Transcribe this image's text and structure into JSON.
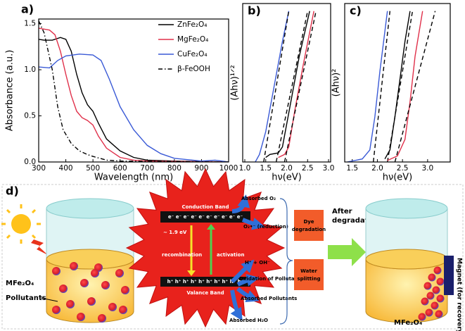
{
  "chart_data": [
    {
      "type": "line",
      "panel_label": "a)",
      "x_label": "Wavelength (nm)",
      "y_label": "Absorbance (a.u.)",
      "xlim": [
        300,
        1000
      ],
      "ylim": [
        0,
        1.55
      ],
      "xticks": [
        300,
        400,
        500,
        600,
        700,
        800,
        900,
        1000
      ],
      "yticks": [
        {
          "value": 0,
          "label": "0.0"
        },
        0.5,
        {
          "value": 1,
          "label": "1.0"
        },
        1.5
      ],
      "legend": "upper right",
      "series": [
        {
          "name": "ZnFe₂O₄",
          "color": "#000000",
          "dash": "solid",
          "x": [
            300,
            320,
            350,
            380,
            400,
            420,
            440,
            460,
            480,
            500,
            520,
            550,
            600,
            650,
            700,
            800,
            1000
          ],
          "values": [
            1.33,
            1.32,
            1.32,
            1.35,
            1.33,
            1.2,
            0.95,
            0.75,
            0.62,
            0.55,
            0.42,
            0.25,
            0.12,
            0.05,
            0.02,
            0.01,
            0
          ]
        },
        {
          "name": "MgFe₂O₄",
          "color": "#e0304a",
          "dash": "solid",
          "x": [
            300,
            340,
            360,
            380,
            400,
            420,
            440,
            460,
            480,
            500,
            520,
            550,
            600,
            650,
            700,
            1000
          ],
          "values": [
            1.45,
            1.43,
            1.38,
            1.2,
            0.95,
            0.72,
            0.55,
            0.48,
            0.45,
            0.4,
            0.28,
            0.15,
            0.05,
            0.02,
            0.01,
            0
          ]
        },
        {
          "name": "CuFe₂O₄",
          "color": "#3a5ad6",
          "dash": "solid",
          "x": [
            300,
            340,
            370,
            400,
            450,
            500,
            530,
            560,
            600,
            650,
            700,
            750,
            800,
            900,
            950,
            1000
          ],
          "values": [
            1.03,
            1.02,
            1.1,
            1.15,
            1.17,
            1.16,
            1.1,
            0.9,
            0.6,
            0.35,
            0.18,
            0.09,
            0.04,
            0.01,
            0.02,
            0
          ]
        },
        {
          "name": "β-FeOOH",
          "color": "#000000",
          "dash": "dashdot",
          "x": [
            300,
            320,
            350,
            370,
            390,
            420,
            450,
            480,
            500,
            550,
            600,
            1000
          ],
          "values": [
            1.53,
            1.4,
            1.0,
            0.6,
            0.35,
            0.2,
            0.12,
            0.08,
            0.06,
            0.02,
            0.01,
            0
          ]
        }
      ]
    },
    {
      "type": "line",
      "panel_label": "b)",
      "x_label": "hν(eV)",
      "y_label": "(Ahν)¹ᐟ²",
      "xlim": [
        0.95,
        3.05
      ],
      "ylim": [
        0,
        1.05
      ],
      "xticks": [
        {
          "value": 1,
          "label": "1.0"
        },
        1.5,
        {
          "value": 2,
          "label": "2.0"
        },
        2.5,
        {
          "value": 3,
          "label": "3.0"
        }
      ],
      "series": [
        {
          "color": "#3a5ad6",
          "dash": "solid",
          "x": [
            1.25,
            1.35,
            1.5,
            1.7,
            1.9,
            2.05
          ],
          "values": [
            0,
            0.05,
            0.2,
            0.5,
            0.8,
            1.0
          ]
        },
        {
          "color": "#000000",
          "dash": "dashed",
          "x": [
            1.45,
            2.05
          ],
          "values": [
            0,
            1.0
          ]
        },
        {
          "color": "#000000",
          "dash": "solid",
          "x": [
            1.5,
            1.6,
            1.8,
            1.9,
            2.1,
            2.3,
            2.55
          ],
          "values": [
            0.03,
            0.05,
            0.06,
            0.1,
            0.4,
            0.7,
            1.0
          ]
        },
        {
          "color": "#000000",
          "dash": "dashed",
          "x": [
            1.75,
            2.5
          ],
          "values": [
            0,
            1.0
          ]
        },
        {
          "color": "#e0304a",
          "dash": "solid",
          "x": [
            1.8,
            1.95,
            2.05,
            2.2,
            2.4,
            2.65
          ],
          "values": [
            0.03,
            0.05,
            0.1,
            0.35,
            0.65,
            1.0
          ]
        },
        {
          "color": "#000000",
          "dash": "dashed",
          "x": [
            1.95,
            2.7
          ],
          "values": [
            0,
            1.0
          ]
        }
      ]
    },
    {
      "type": "line",
      "panel_label": "c)",
      "x_label": "hν(eV)",
      "y_label": "(Ahν)²",
      "xlim": [
        1.35,
        3.45
      ],
      "ylim": [
        0,
        1.05
      ],
      "xticks": [
        1.5,
        {
          "value": 2,
          "label": "2.0"
        },
        2.5,
        {
          "value": 3,
          "label": "3.0"
        }
      ],
      "series": [
        {
          "color": "#3a5ad6",
          "dash": "solid",
          "x": [
            1.4,
            1.7,
            1.85,
            1.95,
            2.05,
            2.2
          ],
          "values": [
            0,
            0.02,
            0.08,
            0.3,
            0.6,
            1.0
          ]
        },
        {
          "color": "#000000",
          "dash": "dashed",
          "x": [
            1.92,
            2.25
          ],
          "values": [
            0,
            1.0
          ]
        },
        {
          "color": "#000000",
          "dash": "solid",
          "x": [
            2.15,
            2.25,
            2.35,
            2.45,
            2.55,
            2.65
          ],
          "values": [
            0.02,
            0.08,
            0.3,
            0.55,
            0.8,
            1.0
          ]
        },
        {
          "color": "#000000",
          "dash": "dashed",
          "x": [
            2.2,
            2.7
          ],
          "values": [
            0,
            1.0
          ]
        },
        {
          "color": "#e0304a",
          "dash": "solid",
          "x": [
            2.2,
            2.4,
            2.55,
            2.65,
            2.75,
            2.9
          ],
          "values": [
            0.01,
            0.04,
            0.15,
            0.4,
            0.7,
            1.0
          ]
        },
        {
          "color": "#000000",
          "dash": "dashed",
          "x": [
            2.35,
            3.15
          ],
          "values": [
            0,
            1.0
          ]
        }
      ]
    }
  ],
  "diagram": {
    "panel_label": "d)",
    "left_beaker": {
      "catalyst": "MFe₂O₄",
      "pollutants": "Pollutants"
    },
    "band_diagram": {
      "conduction_band": "Conduction Band",
      "valence_band": "Valance Band",
      "band_gap": "~ 1.9 eV",
      "recombination": "recombination",
      "activation": "activation",
      "electrons": "e⁻ e⁻ e⁻ e⁻ e⁻ e⁻ e⁻ e⁻ e⁻ e⁻",
      "holes": "h⁺ h⁺ h⁺ h⁺ h⁺ h⁺ h⁺ h⁺ h⁺ h⁺"
    },
    "reactions": [
      "Absorbed O₂",
      "O₂•⁻ (reduction)",
      "H⁺ + OH⁻",
      "Oxidation of Pollutants",
      "Absorbed Pollutants",
      "Absorbed H₂O"
    ],
    "products": [
      [
        "Dye",
        "degradation"
      ],
      [
        "Water",
        "splitting"
      ]
    ],
    "transition": [
      "After",
      "degradation"
    ],
    "right_beaker": {
      "magnet": "Magnet (for recovery)",
      "catalyst": "MFe₂O₄"
    }
  }
}
